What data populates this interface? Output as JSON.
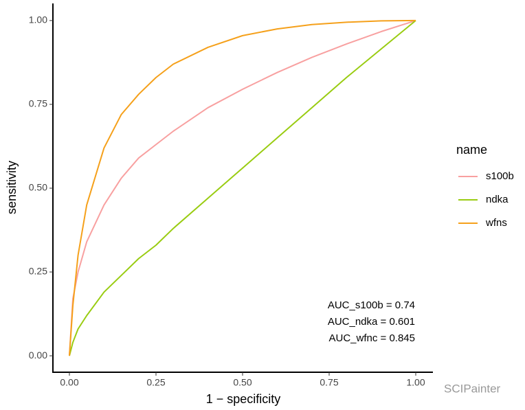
{
  "chart_data": {
    "type": "line",
    "x_label": "1 − specificity",
    "y_label": "sensitivity",
    "x": [
      0,
      0.01,
      0.025,
      0.05,
      0.1,
      0.15,
      0.2,
      0.25,
      0.3,
      0.4,
      0.5,
      0.6,
      0.7,
      0.8,
      0.9,
      1
    ],
    "series": [
      {
        "name": "s100b",
        "color": "#f8a0a0",
        "values": [
          0,
          0.17,
          0.25,
          0.34,
          0.45,
          0.53,
          0.59,
          0.63,
          0.67,
          0.74,
          0.795,
          0.845,
          0.89,
          0.93,
          0.967,
          1
        ]
      },
      {
        "name": "ndka",
        "color": "#99cc11",
        "values": [
          0,
          0.04,
          0.08,
          0.12,
          0.19,
          0.24,
          0.29,
          0.33,
          0.38,
          0.47,
          0.56,
          0.65,
          0.74,
          0.83,
          0.915,
          1
        ]
      },
      {
        "name": "wfns",
        "color": "#f5a01a",
        "values": [
          0,
          0.15,
          0.3,
          0.45,
          0.62,
          0.72,
          0.78,
          0.83,
          0.87,
          0.92,
          0.955,
          0.975,
          0.988,
          0.995,
          0.999,
          1
        ]
      }
    ],
    "legend_title": "name",
    "annotations": [
      "AUC_s100b = 0.74",
      "AUC_ndka = 0.601",
      "AUC_wfnc = 0.845"
    ],
    "watermark": "SCIPainter",
    "xlim": [
      -0.0476,
      1.0496
    ],
    "ylim": [
      -0.049,
      1.051
    ],
    "xticks": [
      {
        "value": 0,
        "label": "0.00"
      },
      {
        "value": 0.25,
        "label": "0.25"
      },
      {
        "value": 0.5,
        "label": "0.50"
      },
      {
        "value": 0.75,
        "label": "0.75"
      },
      {
        "value": 1,
        "label": "1.00"
      }
    ],
    "yticks": [
      {
        "value": 0,
        "label": "0.00"
      },
      {
        "value": 0.25,
        "label": "0.25"
      },
      {
        "value": 0.5,
        "label": "0.50"
      },
      {
        "value": 0.75,
        "label": "0.75"
      },
      {
        "value": 1,
        "label": "1.00"
      }
    ]
  }
}
